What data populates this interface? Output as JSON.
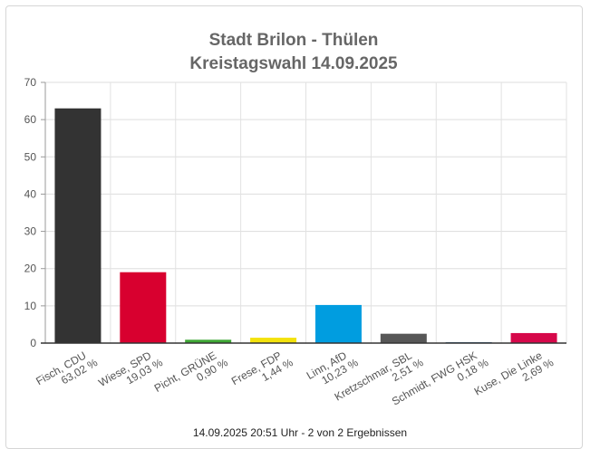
{
  "chart_data": {
    "type": "bar",
    "title": [
      "Stadt Brilon - Thülen",
      "Kreistagswahl 14.09.2025"
    ],
    "categories": [
      {
        "name": "Fisch, CDU",
        "pct": "63,02 %"
      },
      {
        "name": "Wiese, SPD",
        "pct": "19,03 %"
      },
      {
        "name": "Picht, GRÜNE",
        "pct": "0,90 %"
      },
      {
        "name": "Frese, FDP",
        "pct": "1,44 %"
      },
      {
        "name": "Linn, AfD",
        "pct": "10,23 %"
      },
      {
        "name": "Kretzschmar, SBL",
        "pct": "2,51 %"
      },
      {
        "name": "Schmidt, FWG HSK",
        "pct": "0,18 %"
      },
      {
        "name": "Kuse, Die Linke",
        "pct": "2,69 %"
      }
    ],
    "values": [
      63.02,
      19.03,
      0.9,
      1.44,
      10.23,
      2.51,
      0.18,
      2.69
    ],
    "colors": [
      "#333333",
      "#d8002f",
      "#3ea734",
      "#f3e20c",
      "#009de0",
      "#575757",
      "#3d6e9c",
      "#d6084a"
    ],
    "ylim": [
      0,
      70
    ],
    "yticks": [
      0,
      10,
      20,
      30,
      40,
      50,
      60,
      70
    ],
    "grid": true,
    "xlabel": "",
    "ylabel": ""
  },
  "footer": {
    "text": "14.09.2025 20:51 Uhr - 2 von 2 Ergebnissen"
  }
}
